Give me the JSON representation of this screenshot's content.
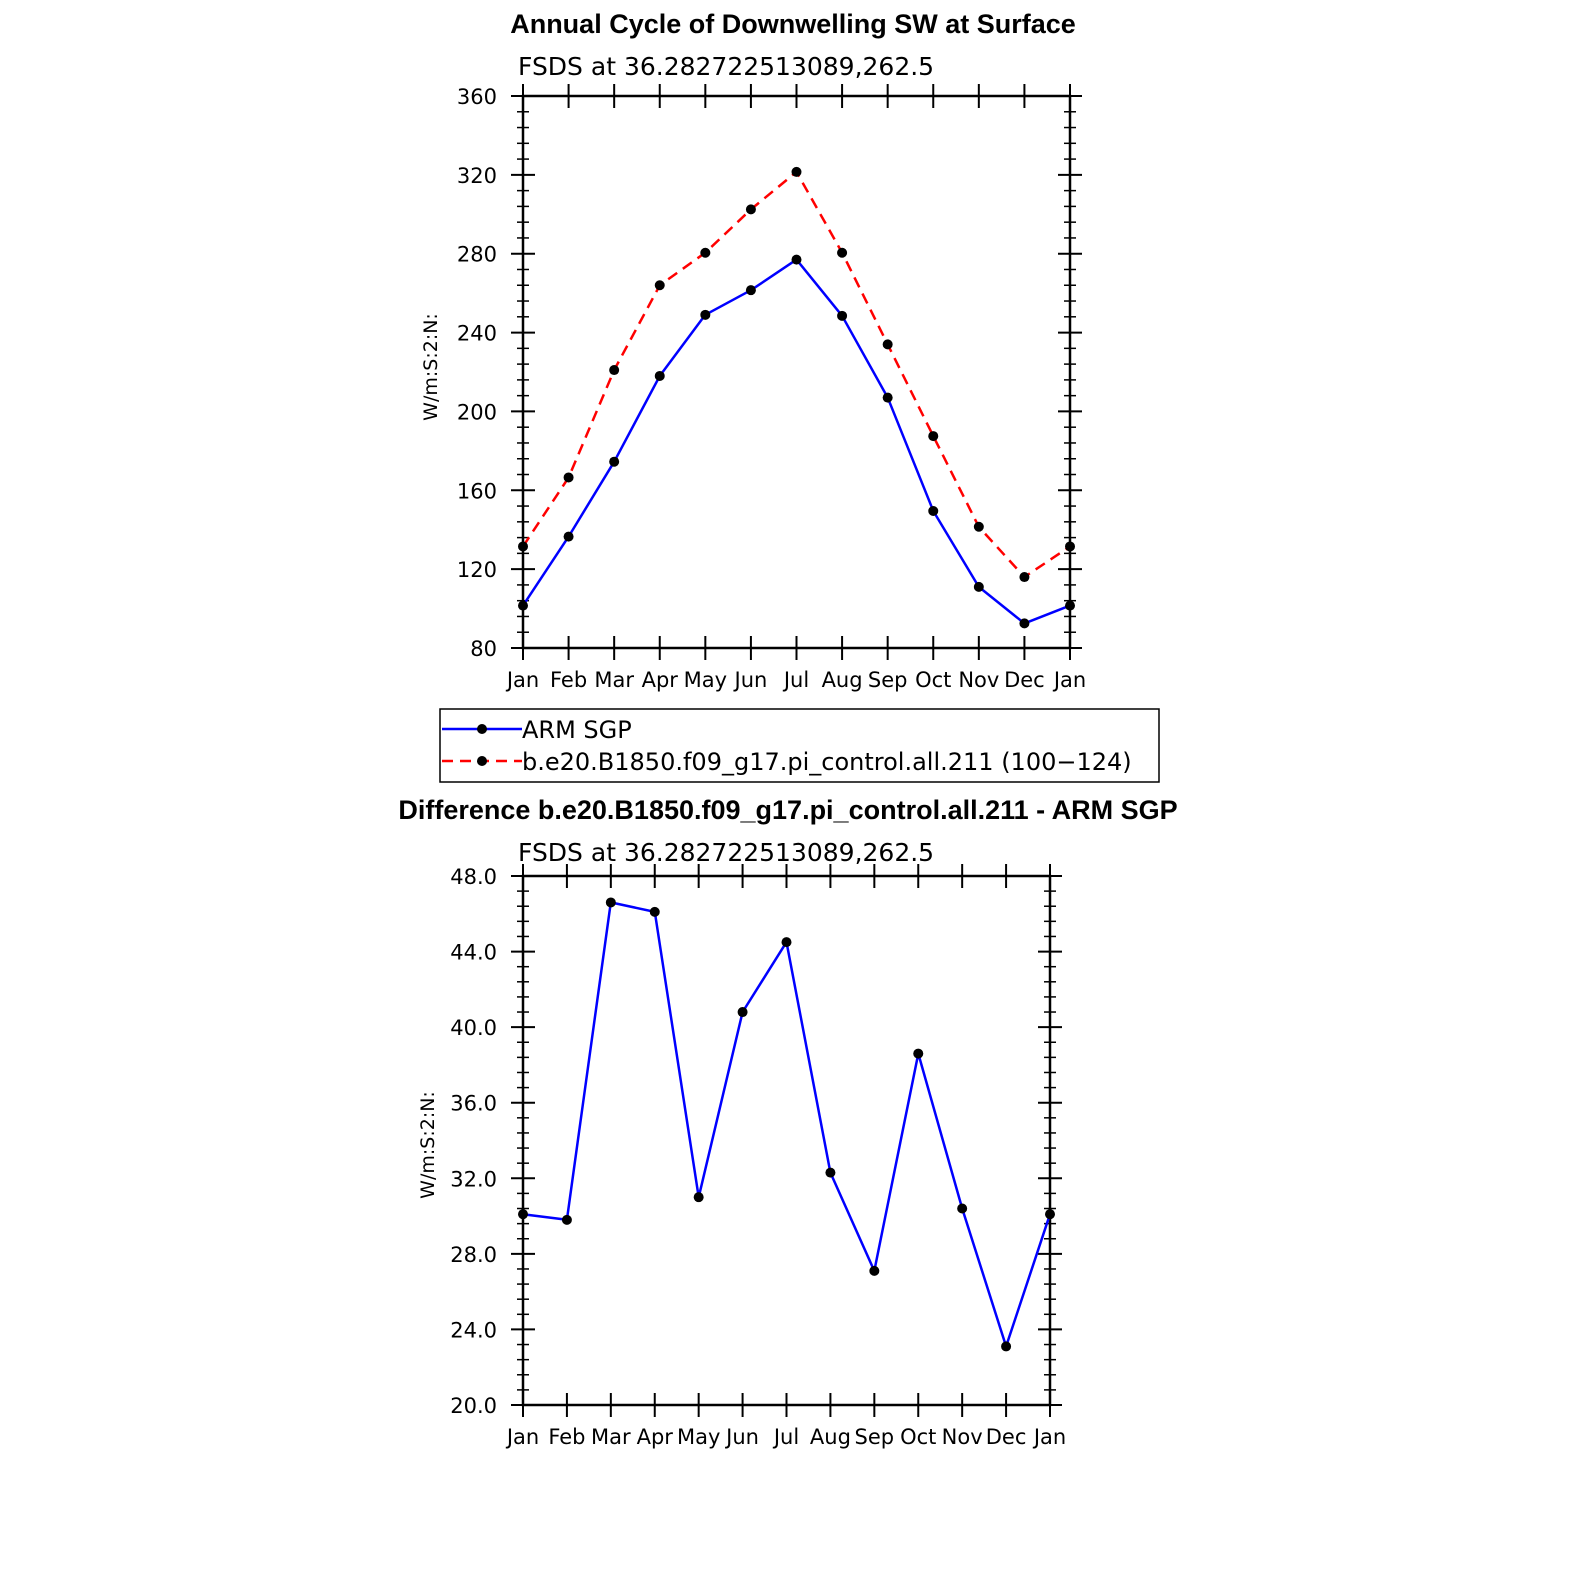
{
  "chart_data": [
    {
      "type": "line",
      "title": "Annual Cycle of Downwelling SW at Surface",
      "subtitle": "FSDS at 36.282722513089,262.5",
      "ylabel": "W/m:S:2:N:",
      "xlabel": "",
      "categories": [
        "Jan",
        "Feb",
        "Mar",
        "Apr",
        "May",
        "Jun",
        "Jul",
        "Aug",
        "Sep",
        "Oct",
        "Nov",
        "Dec",
        "Jan"
      ],
      "ylim": [
        80,
        360
      ],
      "yticks": [
        "80",
        "120",
        "160",
        "200",
        "240",
        "280",
        "320",
        "360"
      ],
      "series": [
        {
          "name": "ARM SGP",
          "color": "#0000ff",
          "style": "solid",
          "values": [
            101.5,
            136.5,
            174.5,
            218,
            249,
            261.5,
            277,
            248.5,
            207,
            149.5,
            111,
            92.5,
            101.5
          ]
        },
        {
          "name": "b.e20.B1850.f09_g17.pi_control.all.211 (100−124)",
          "color": "#ff0000",
          "style": "dashed",
          "values": [
            131.5,
            166.5,
            221,
            264,
            280.5,
            302.5,
            321.5,
            280.5,
            234,
            187.5,
            141.5,
            116,
            131.5
          ]
        }
      ],
      "legend": "below"
    },
    {
      "type": "line",
      "title": "Difference b.e20.B1850.f09_g17.pi_control.all.211 - ARM SGP",
      "subtitle": "FSDS at 36.282722513089,262.5",
      "ylabel": "W/m:S:2:N:",
      "xlabel": "",
      "categories": [
        "Jan",
        "Feb",
        "Mar",
        "Apr",
        "May",
        "Jun",
        "Jul",
        "Aug",
        "Sep",
        "Oct",
        "Nov",
        "Dec",
        "Jan"
      ],
      "ylim": [
        20,
        48
      ],
      "yticks": [
        "20.0",
        "24.0",
        "28.0",
        "32.0",
        "36.0",
        "40.0",
        "44.0",
        "48.0"
      ],
      "series": [
        {
          "color": "#0000ff",
          "style": "solid",
          "values": [
            30.1,
            29.8,
            46.6,
            46.1,
            31.0,
            40.8,
            44.5,
            32.3,
            27.1,
            38.6,
            30.4,
            23.1,
            30.1
          ]
        }
      ]
    }
  ]
}
